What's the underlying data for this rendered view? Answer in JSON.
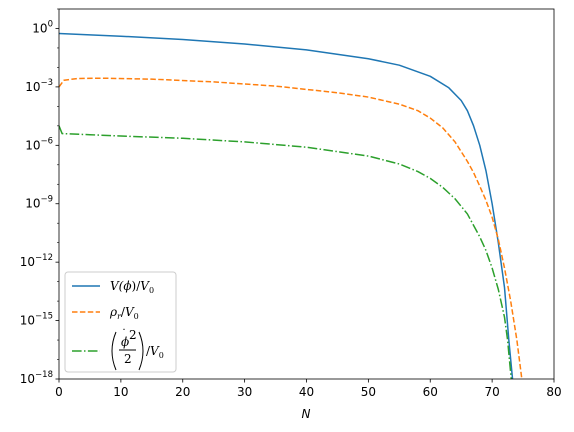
{
  "chart_data": {
    "type": "line",
    "title": "",
    "xlabel": "N",
    "ylabel": "",
    "xlim": [
      0,
      80
    ],
    "ylim": [
      1e-18,
      10
    ],
    "yscale": "log",
    "grid": false,
    "legend_position": "lower-left",
    "x_ticks": [
      0,
      10,
      20,
      30,
      40,
      50,
      60,
      70,
      80
    ],
    "x_tick_labels": [
      "0",
      "10",
      "20",
      "30",
      "40",
      "50",
      "60",
      "70",
      "80"
    ],
    "y_ticks": [
      1,
      0.001,
      1e-06,
      1e-09,
      1e-12,
      1e-15,
      1e-18
    ],
    "y_tick_labels": [
      {
        "base": "10",
        "exp": "0"
      },
      {
        "base": "10",
        "exp": "−3"
      },
      {
        "base": "10",
        "exp": "−6"
      },
      {
        "base": "10",
        "exp": "−9"
      },
      {
        "base": "10",
        "exp": "−12"
      },
      {
        "base": "10",
        "exp": "−15"
      },
      {
        "base": "10",
        "exp": "−18"
      }
    ],
    "series": [
      {
        "name": "V(ϕ)/V0",
        "color": "#1f77b4",
        "dash": "solid",
        "points": [
          [
            0,
            0.55
          ],
          [
            10,
            0.4
          ],
          [
            20,
            0.27
          ],
          [
            30,
            0.16
          ],
          [
            40,
            0.08
          ],
          [
            50,
            0.028
          ],
          [
            55,
            0.013
          ],
          [
            60,
            0.0035
          ],
          [
            63,
            0.0009
          ],
          [
            65,
            0.0002
          ],
          [
            66,
            6e-05
          ],
          [
            67,
            1e-05
          ],
          [
            68,
            1e-06
          ],
          [
            69,
            5e-08
          ],
          [
            70,
            1e-09
          ],
          [
            71,
            1e-11
          ],
          [
            72,
            5e-14
          ],
          [
            72.7,
            1e-16
          ],
          [
            73.3,
            1e-18
          ]
        ]
      },
      {
        "name": "ρr/V0",
        "color": "#ff7f0e",
        "dash": "dashed",
        "points": [
          [
            0,
            0.001
          ],
          [
            0.8,
            0.0022
          ],
          [
            3,
            0.0027
          ],
          [
            7,
            0.0028
          ],
          [
            15,
            0.0025
          ],
          [
            25,
            0.0018
          ],
          [
            35,
            0.0011
          ],
          [
            45,
            0.0005
          ],
          [
            50,
            0.0003
          ],
          [
            55,
            0.00013
          ],
          [
            58,
            6e-05
          ],
          [
            60,
            2.5e-05
          ],
          [
            62,
            8e-06
          ],
          [
            64,
            1.5e-06
          ],
          [
            66,
            1.5e-07
          ],
          [
            67,
            4e-08
          ],
          [
            68,
            8e-09
          ],
          [
            69,
            1.5e-09
          ],
          [
            70,
            2e-10
          ],
          [
            71,
            1.5e-11
          ],
          [
            72,
            5e-13
          ],
          [
            73,
            1e-14
          ],
          [
            74,
            1e-16
          ],
          [
            74.8,
            1e-18
          ]
        ]
      },
      {
        "name": "(ϕ̇²/2)/V0",
        "color": "#2ca02c",
        "dash": "dashdot",
        "points": [
          [
            0,
            1e-05
          ],
          [
            0.5,
            4e-06
          ],
          [
            5,
            3.5e-06
          ],
          [
            10,
            3e-06
          ],
          [
            20,
            2.3e-06
          ],
          [
            30,
            1.5e-06
          ],
          [
            40,
            8e-07
          ],
          [
            50,
            2.8e-07
          ],
          [
            55,
            1.1e-07
          ],
          [
            58,
            4.5e-08
          ],
          [
            60,
            2e-08
          ],
          [
            62,
            7e-09
          ],
          [
            64,
            1.8e-09
          ],
          [
            66,
            3e-10
          ],
          [
            68,
            2e-11
          ],
          [
            69,
            4e-12
          ],
          [
            70,
            5e-13
          ],
          [
            71,
            4e-14
          ],
          [
            72,
            1.5e-15
          ],
          [
            72.5,
            1e-16
          ],
          [
            73,
            2e-18
          ],
          [
            73.1,
            1e-18
          ]
        ]
      }
    ],
    "legend": {
      "v": {
        "main": "V(",
        "phi": "ϕ",
        "close": ")/",
        "v": "V",
        "sub": "0"
      },
      "rho": {
        "rho": "ρ",
        "sub_r": "r",
        "slash": "/",
        "v": "V",
        "sub": "0"
      },
      "kin": {
        "num_phi": "ϕ",
        "dot": "˙",
        "sq": "2",
        "den": "2",
        "slash": "/",
        "v": "V",
        "sub": "0"
      }
    }
  }
}
